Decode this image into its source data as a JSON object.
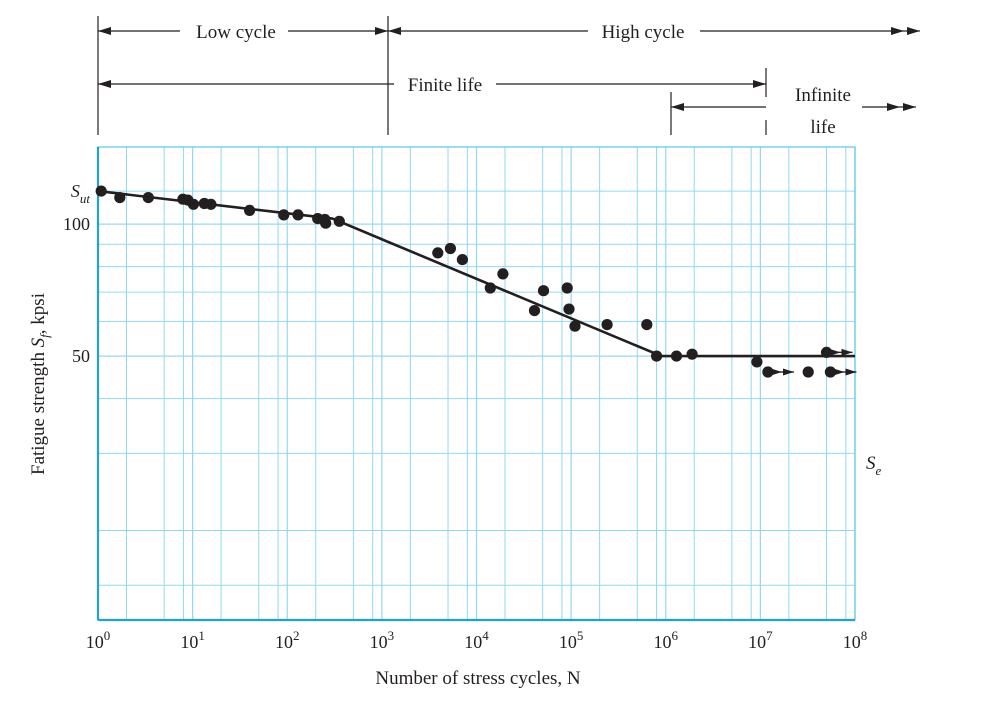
{
  "chart_data": {
    "type": "scatter",
    "xlabel": "Number of stress cycles, N",
    "ylabel": "Fatigue strength S_f, kpsi",
    "x_scale": "log",
    "xlim": [
      1,
      100000000
    ],
    "ylim": [
      12.5,
      150
    ],
    "grid": true,
    "x_ticks": [
      {
        "value": 1,
        "base": "10",
        "exp": "0"
      },
      {
        "value": 10,
        "base": "10",
        "exp": "1"
      },
      {
        "value": 100,
        "base": "10",
        "exp": "2"
      },
      {
        "value": 1000,
        "base": "10",
        "exp": "3"
      },
      {
        "value": 10000,
        "base": "10",
        "exp": "4"
      },
      {
        "value": 100000,
        "base": "10",
        "exp": "5"
      },
      {
        "value": 1000000,
        "base": "10",
        "exp": "6"
      },
      {
        "value": 10000000,
        "base": "10",
        "exp": "7"
      },
      {
        "value": 100000000,
        "base": "10",
        "exp": "8"
      }
    ],
    "y_ticks": [
      {
        "value": 119,
        "label": "S",
        "sub": "ut"
      },
      {
        "value": 100,
        "label": "100"
      },
      {
        "value": 50,
        "label": "50"
      }
    ],
    "line": {
      "x": [
        1,
        300,
        900000,
        100000000
      ],
      "y": [
        119,
        103,
        50,
        50
      ]
    },
    "line_end_label": {
      "label": "S",
      "sub": "e"
    },
    "series": [
      {
        "x": [
          1.08,
          1.7,
          3.4,
          7.9,
          8.9,
          10.2,
          13.3,
          15.6,
          40,
          92,
          130,
          210,
          250,
          255,
          355,
          3900,
          5300,
          7100,
          14000,
          19000,
          41000,
          51000,
          91000,
          95000,
          110000,
          240000,
          630000,
          800000,
          1300000,
          1900000,
          9200000,
          12000000,
          32000000,
          50000000,
          55000000
        ],
        "y": [
          119,
          115,
          115,
          114,
          113.5,
          111,
          111.5,
          111,
          107.5,
          105,
          105,
          103,
          102.5,
          100.5,
          101.5,
          86,
          88,
          83,
          71.5,
          77,
          63.5,
          70.5,
          71.5,
          64,
          58.5,
          59,
          59,
          50,
          50,
          50.5,
          48.5,
          46,
          46,
          51,
          46
        ]
      }
    ],
    "runout_arrows": [
      {
        "x": 12000000,
        "y": 46
      },
      {
        "x": 50000000,
        "y": 51
      },
      {
        "x": 55000000,
        "y": 46
      }
    ],
    "annotations": {
      "low_cycle": "Low cycle",
      "high_cycle": "High cycle",
      "finite_life": "Finite life",
      "infinite": "Infinite",
      "life": "life"
    }
  }
}
